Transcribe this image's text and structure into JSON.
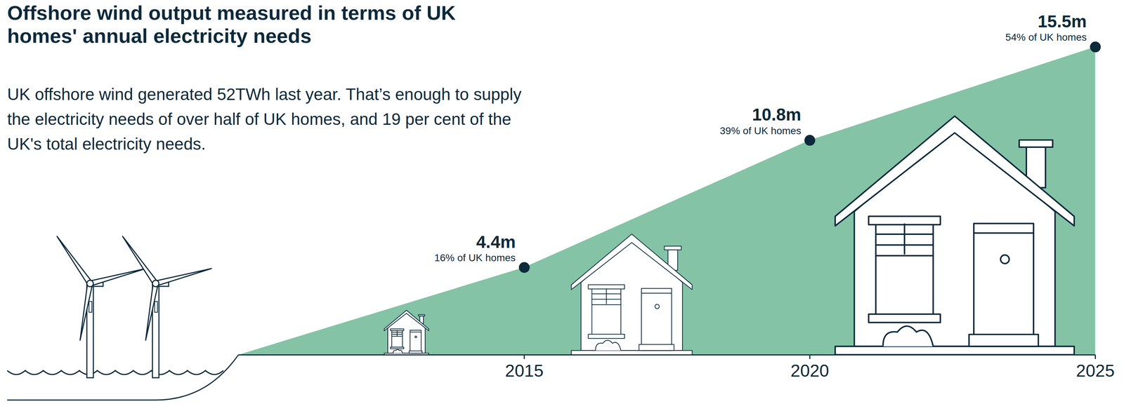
{
  "chart_data": {
    "type": "area",
    "title": "Offshore wind output measured in terms of UK homes' annual electricity needs",
    "subtitle": "UK offshore wind generated 52TWh last year. That’s enough to supply the electricity needs of over half of UK homes, and 19 per cent of the UK's total electricity needs.",
    "x": [
      2010,
      2015,
      2020,
      2025
    ],
    "values": [
      0,
      4.4,
      10.8,
      15.5
    ],
    "value_labels": [
      null,
      "4.4m",
      "10.8m",
      "15.5m"
    ],
    "share_labels": [
      null,
      "16% of UK homes",
      "39% of UK homes",
      "54% of UK homes"
    ],
    "xlim": [
      2010,
      2025
    ],
    "xticks": [
      2015,
      2020,
      2025
    ],
    "ylim": [
      0,
      15.5
    ],
    "tick_labels": "x",
    "data_labels": true,
    "color": "#84c3a6"
  }
}
